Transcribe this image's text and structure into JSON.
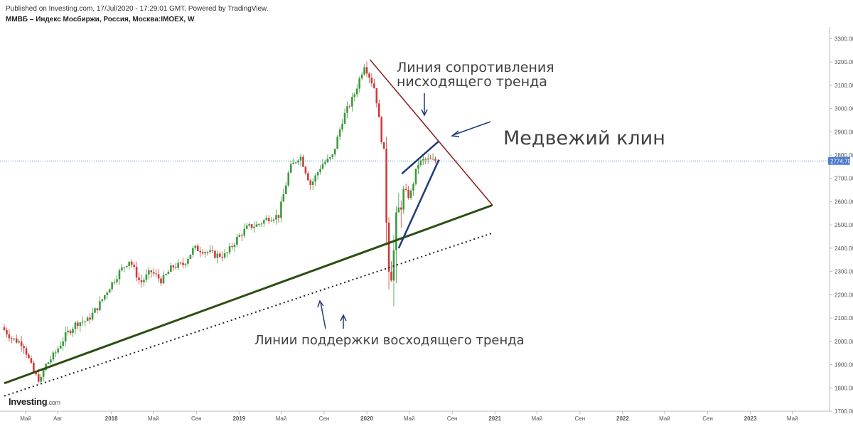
{
  "header": {
    "published": "Published on Investing.com, 17/Jul/2020 - 17:29:01 GMT, Powered by TradingView.",
    "instrument": "ММВБ – Индекс Мосбиржи, Россия, Москва:IMOEX, W"
  },
  "logo": {
    "brand": "Investing",
    "domain": ".com"
  },
  "chart_data": {
    "type": "candlestick",
    "ylim": [
      1700,
      3350
    ],
    "yticks": [
      "3300.00",
      "3200.00",
      "3100.00",
      "3000.00",
      "2900.00",
      "2800.00",
      "2700.00",
      "2600.00",
      "2500.00",
      "2400.00",
      "2300.00",
      "2200.00",
      "2100.00",
      "2000.00",
      "1900.00",
      "1800.00",
      "1700.00"
    ],
    "ytick_values": [
      3300,
      3200,
      3100,
      3000,
      2900,
      2800,
      2700,
      2600,
      2500,
      2400,
      2300,
      2200,
      2100,
      2000,
      1900,
      1800,
      1700
    ],
    "xlim": [
      "2017-03-01",
      "2023-08-01"
    ],
    "xticks": [
      {
        "label": "Май",
        "date": "2017-05-01"
      },
      {
        "label": "Авг",
        "date": "2017-08-01"
      },
      {
        "label": "2018",
        "date": "2018-01-01"
      },
      {
        "label": "Май",
        "date": "2018-05-01"
      },
      {
        "label": "Сен",
        "date": "2018-09-01"
      },
      {
        "label": "2019",
        "date": "2019-01-01"
      },
      {
        "label": "Май",
        "date": "2019-05-01"
      },
      {
        "label": "Сен",
        "date": "2019-09-01"
      },
      {
        "label": "2020",
        "date": "2020-01-01"
      },
      {
        "label": "Май",
        "date": "2020-05-01"
      },
      {
        "label": "Сен",
        "date": "2020-09-01"
      },
      {
        "label": "2021",
        "date": "2021-01-01"
      },
      {
        "label": "Май",
        "date": "2021-05-01"
      },
      {
        "label": "Сен",
        "date": "2021-09-01"
      },
      {
        "label": "2022",
        "date": "2022-01-01"
      },
      {
        "label": "Май",
        "date": "2022-05-01"
      },
      {
        "label": "Сен",
        "date": "2022-09-01"
      },
      {
        "label": "2023",
        "date": "2023-01-01"
      },
      {
        "label": "Май",
        "date": "2023-05-01"
      }
    ],
    "current_price": 2774.79,
    "current_price_label": "2774.79",
    "price_path": [
      {
        "date": "2017-03-01",
        "price": 2060
      },
      {
        "date": "2017-04-01",
        "price": 2010
      },
      {
        "date": "2017-05-01",
        "price": 1990
      },
      {
        "date": "2017-06-01",
        "price": 1860
      },
      {
        "date": "2017-06-20",
        "price": 1830
      },
      {
        "date": "2017-07-01",
        "price": 1890
      },
      {
        "date": "2017-08-01",
        "price": 1950
      },
      {
        "date": "2017-09-01",
        "price": 2030
      },
      {
        "date": "2017-10-01",
        "price": 2080
      },
      {
        "date": "2017-11-01",
        "price": 2090
      },
      {
        "date": "2017-12-01",
        "price": 2150
      },
      {
        "date": "2018-01-01",
        "price": 2230
      },
      {
        "date": "2018-02-01",
        "price": 2300
      },
      {
        "date": "2018-03-01",
        "price": 2350
      },
      {
        "date": "2018-04-01",
        "price": 2250
      },
      {
        "date": "2018-05-01",
        "price": 2300
      },
      {
        "date": "2018-06-01",
        "price": 2260
      },
      {
        "date": "2018-07-01",
        "price": 2320
      },
      {
        "date": "2018-08-01",
        "price": 2330
      },
      {
        "date": "2018-09-01",
        "price": 2400
      },
      {
        "date": "2018-10-01",
        "price": 2390
      },
      {
        "date": "2018-11-01",
        "price": 2370
      },
      {
        "date": "2018-12-01",
        "price": 2370
      },
      {
        "date": "2019-01-01",
        "price": 2440
      },
      {
        "date": "2019-02-01",
        "price": 2490
      },
      {
        "date": "2019-03-01",
        "price": 2500
      },
      {
        "date": "2019-04-01",
        "price": 2530
      },
      {
        "date": "2019-05-01",
        "price": 2540
      },
      {
        "date": "2019-06-01",
        "price": 2740
      },
      {
        "date": "2019-07-01",
        "price": 2800
      },
      {
        "date": "2019-08-01",
        "price": 2670
      },
      {
        "date": "2019-09-01",
        "price": 2760
      },
      {
        "date": "2019-10-01",
        "price": 2790
      },
      {
        "date": "2019-11-01",
        "price": 2960
      },
      {
        "date": "2019-12-01",
        "price": 3050
      },
      {
        "date": "2020-01-01",
        "price": 3190
      },
      {
        "date": "2020-02-01",
        "price": 3080
      },
      {
        "date": "2020-02-25",
        "price": 2800
      },
      {
        "date": "2020-03-10",
        "price": 2350
      },
      {
        "date": "2020-03-20",
        "price": 2300
      },
      {
        "date": "2020-04-01",
        "price": 2500
      },
      {
        "date": "2020-04-20",
        "price": 2650
      },
      {
        "date": "2020-05-10",
        "price": 2620
      },
      {
        "date": "2020-06-01",
        "price": 2760
      },
      {
        "date": "2020-06-20",
        "price": 2780
      },
      {
        "date": "2020-07-17",
        "price": 2774.79
      }
    ],
    "annotations": {
      "resistance_label_1": "Линия сопротивления",
      "resistance_label_2": "нисходящего тренда",
      "wedge_label": "Медвежий клин",
      "support_label": "Линии поддержки восходящего тренда"
    },
    "trendlines": {
      "resistance": [
        {
          "date": "2020-01-10",
          "price": 3210
        },
        {
          "date": "2020-12-25",
          "price": 2585
        }
      ],
      "support_solid": [
        {
          "date": "2017-03-01",
          "price": 1820
        },
        {
          "date": "2020-12-25",
          "price": 2585
        }
      ],
      "support_dotted": [
        {
          "date": "2017-03-01",
          "price": 1765
        },
        {
          "date": "2020-12-25",
          "price": 2465
        }
      ],
      "wedge_upper": [
        {
          "date": "2020-04-10",
          "price": 2720
        },
        {
          "date": "2020-07-25",
          "price": 2860
        }
      ],
      "wedge_lower": [
        {
          "date": "2020-04-01",
          "price": 2400
        },
        {
          "date": "2020-07-25",
          "price": 2780
        }
      ]
    },
    "colors": {
      "up": "#3c9a3c",
      "down": "#d03a3a",
      "resistance": "#8b1a1a",
      "support": "#2e4d12",
      "wedge": "#1f3a7a",
      "price_line": "#5b83c8",
      "price_badge": "#4a7bd0"
    }
  }
}
